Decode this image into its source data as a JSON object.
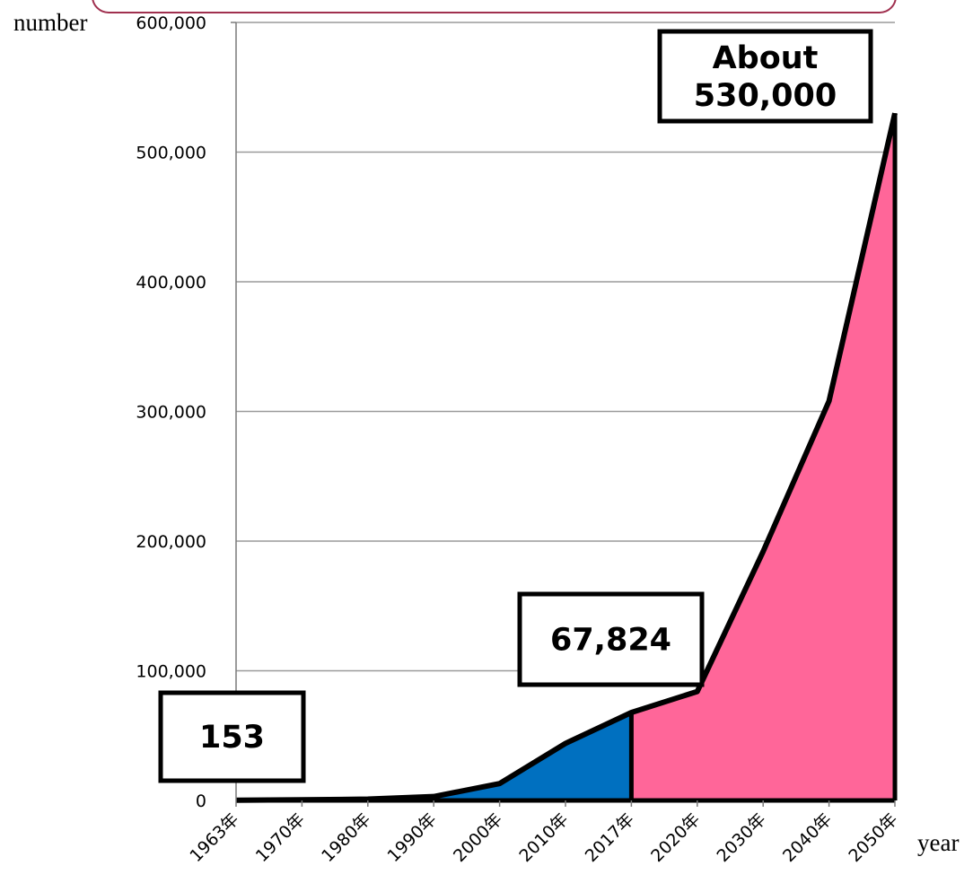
{
  "chart_data": {
    "type": "area",
    "xlabel": "year",
    "ylabel": "number",
    "ylim": [
      0,
      600000
    ],
    "yticks": [
      0,
      100000,
      200000,
      300000,
      400000,
      500000,
      600000
    ],
    "ytick_labels": [
      "0",
      "100,000",
      "200,000",
      "300,000",
      "400,000",
      "500,000",
      "600,000"
    ],
    "categories": [
      "1963年",
      "1970年",
      "1980年",
      "1990年",
      "2000年",
      "2010年",
      "2017年",
      "2020年",
      "2030年",
      "2040年",
      "2050年"
    ],
    "series": [
      {
        "values": [
          153,
          500,
          1000,
          3000,
          13000,
          44000,
          67824,
          null,
          null,
          null,
          null
        ],
        "color": "#0070c0"
      },
      {
        "values": [
          null,
          null,
          null,
          null,
          null,
          null,
          67824,
          84000,
          192000,
          308000,
          530000
        ],
        "color": "#ff6699"
      }
    ],
    "annotations": [
      {
        "text": "153"
      },
      {
        "text": "67,824"
      },
      {
        "text": [
          "About",
          "530,000"
        ]
      }
    ],
    "grid": true
  }
}
